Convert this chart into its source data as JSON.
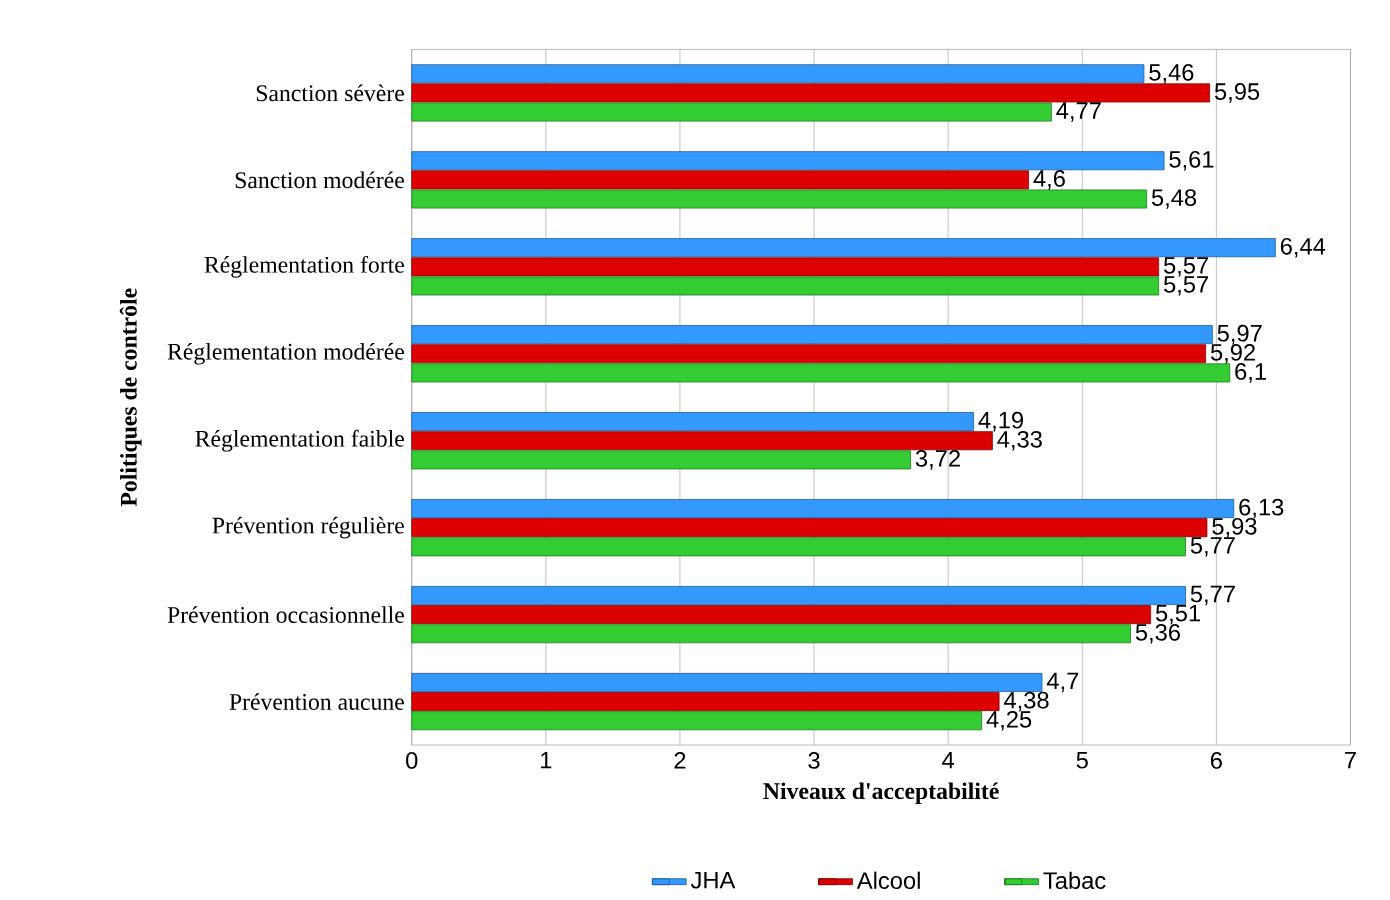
{
  "chart_data": {
    "type": "bar",
    "orientation": "horizontal",
    "xlabel": "Niveaux d'acceptabilité",
    "ylabel": "Politiques de contrôle",
    "categories": [
      "Sanction sévère",
      "Sanction modérée",
      "Réglementation forte",
      "Réglementation modérée",
      "Réglementation faible",
      "Prévention régulière",
      "Prévention occasionnelle",
      "Prévention aucune"
    ],
    "series": [
      {
        "name": "JHA",
        "color": "#3399ff",
        "values": [
          5.46,
          5.61,
          6.44,
          5.97,
          4.19,
          6.13,
          5.77,
          4.7
        ],
        "value_labels": [
          "5,46",
          "5,61",
          "6,44",
          "5,97",
          "4,19",
          "6,13",
          "5,77",
          "4,7"
        ]
      },
      {
        "name": "Alcool",
        "color": "#dd0000",
        "values": [
          5.95,
          4.6,
          5.57,
          5.92,
          4.33,
          5.93,
          5.51,
          4.38
        ],
        "value_labels": [
          "5,95",
          "4,6",
          "5,57",
          "5,92",
          "4,33",
          "5,93",
          "5,51",
          "4,38"
        ]
      },
      {
        "name": "Tabac",
        "color": "#33cc33",
        "values": [
          4.77,
          5.48,
          5.57,
          6.1,
          3.72,
          5.77,
          5.36,
          4.25
        ],
        "value_labels": [
          "4,77",
          "5,48",
          "5,57",
          "6,1",
          "3,72",
          "5,77",
          "5,36",
          "4,25"
        ]
      }
    ],
    "xlim": [
      0,
      7
    ],
    "xticks": [
      0,
      1,
      2,
      3,
      4,
      5,
      6,
      7
    ],
    "grid": "x",
    "legend": "bottom"
  }
}
